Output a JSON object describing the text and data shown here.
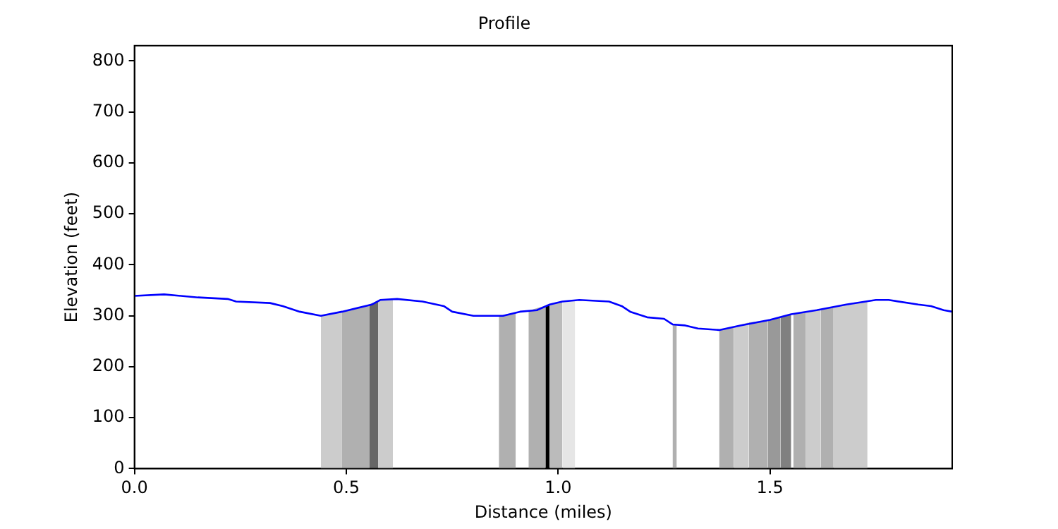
{
  "chart_data": {
    "type": "line",
    "title": "Profile",
    "xlabel": "Distance (miles)",
    "ylabel": "Elevation (feet)",
    "xlim": [
      0,
      1.93
    ],
    "ylim": [
      0,
      830
    ],
    "xticks": [
      {
        "value": 0,
        "label": "0.0"
      },
      {
        "value": 0.5,
        "label": "0.5"
      },
      {
        "value": 1,
        "label": "1.0"
      },
      {
        "value": 1.5,
        "label": "1.5"
      }
    ],
    "yticks": [
      0,
      100,
      200,
      300,
      400,
      500,
      600,
      700,
      800
    ],
    "grid": false,
    "legend": false,
    "marker": "none",
    "line_style": "solid",
    "series": [
      {
        "type": "line",
        "color": "#0000ff",
        "x": [
          0,
          0.07,
          0.15,
          0.22,
          0.24,
          0.32,
          0.35,
          0.39,
          0.44,
          0.49,
          0.56,
          0.58,
          0.62,
          0.68,
          0.73,
          0.75,
          0.8,
          0.87,
          0.91,
          0.95,
          0.98,
          1.01,
          1.05,
          1.12,
          1.15,
          1.17,
          1.21,
          1.25,
          1.27,
          1.3,
          1.33,
          1.38,
          1.43,
          1.5,
          1.55,
          1.61,
          1.68,
          1.75,
          1.78,
          1.85,
          1.88,
          1.91,
          1.93
        ],
        "values": [
          339,
          342,
          336,
          333,
          328,
          325,
          319,
          308,
          300,
          308,
          322,
          331,
          333,
          328,
          319,
          308,
          300,
          300,
          308,
          311,
          322,
          328,
          331,
          328,
          319,
          308,
          297,
          294,
          283,
          281,
          275,
          272,
          281,
          292,
          303,
          311,
          322,
          331,
          331,
          322,
          319,
          311,
          308
        ]
      },
      {
        "type": "area",
        "color": "#cccccc",
        "x": [
          0.44,
          0.49
        ],
        "values": [
          300,
          308
        ]
      },
      {
        "type": "area",
        "color": "#b0b0b0",
        "x": [
          0.49,
          0.555
        ],
        "values": [
          308,
          322
        ]
      },
      {
        "type": "area",
        "color": "#666666",
        "x": [
          0.555,
          0.575
        ],
        "values": [
          322,
          330
        ]
      },
      {
        "type": "area",
        "color": "#cccccc",
        "x": [
          0.575,
          0.61
        ],
        "values": [
          330,
          333
        ]
      },
      {
        "type": "area",
        "color": "#b0b0b0",
        "x": [
          0.86,
          0.9
        ],
        "values": [
          300,
          306
        ]
      },
      {
        "type": "area",
        "color": "#b0b0b0",
        "x": [
          0.93,
          0.97
        ],
        "values": [
          310,
          320
        ]
      },
      {
        "type": "area",
        "color": "#000000",
        "x": [
          0.97,
          0.98
        ],
        "values": [
          320,
          322
        ]
      },
      {
        "type": "area",
        "color": "#bbbbbb",
        "x": [
          0.98,
          1.01
        ],
        "values": [
          322,
          328
        ]
      },
      {
        "type": "area",
        "color": "#e6e6e6",
        "x": [
          1.01,
          1.04
        ],
        "values": [
          328,
          331
        ]
      },
      {
        "type": "area",
        "color": "#b0b0b0",
        "x": [
          1.27,
          1.28
        ],
        "values": [
          283,
          283
        ]
      },
      {
        "type": "area",
        "color": "#b0b0b0",
        "x": [
          1.38,
          1.415
        ],
        "values": [
          272,
          279
        ]
      },
      {
        "type": "area",
        "color": "#cccccc",
        "x": [
          1.415,
          1.45
        ],
        "values": [
          279,
          287
        ]
      },
      {
        "type": "area",
        "color": "#b0b0b0",
        "x": [
          1.45,
          1.495
        ],
        "values": [
          287,
          291
        ]
      },
      {
        "type": "area",
        "color": "#999999",
        "x": [
          1.495,
          1.525
        ],
        "values": [
          291,
          297
        ]
      },
      {
        "type": "area",
        "color": "#808080",
        "x": [
          1.525,
          1.55
        ],
        "values": [
          297,
          303
        ]
      },
      {
        "type": "area",
        "color": "#b0b0b0",
        "x": [
          1.555,
          1.585
        ],
        "values": [
          304,
          307
        ]
      },
      {
        "type": "area",
        "color": "#cccccc",
        "x": [
          1.585,
          1.62
        ],
        "values": [
          307,
          312
        ]
      },
      {
        "type": "area",
        "color": "#b0b0b0",
        "x": [
          1.62,
          1.65
        ],
        "values": [
          312,
          317
        ]
      },
      {
        "type": "area",
        "color": "#cccccc",
        "x": [
          1.65,
          1.73
        ],
        "values": [
          317,
          328
        ]
      }
    ]
  }
}
